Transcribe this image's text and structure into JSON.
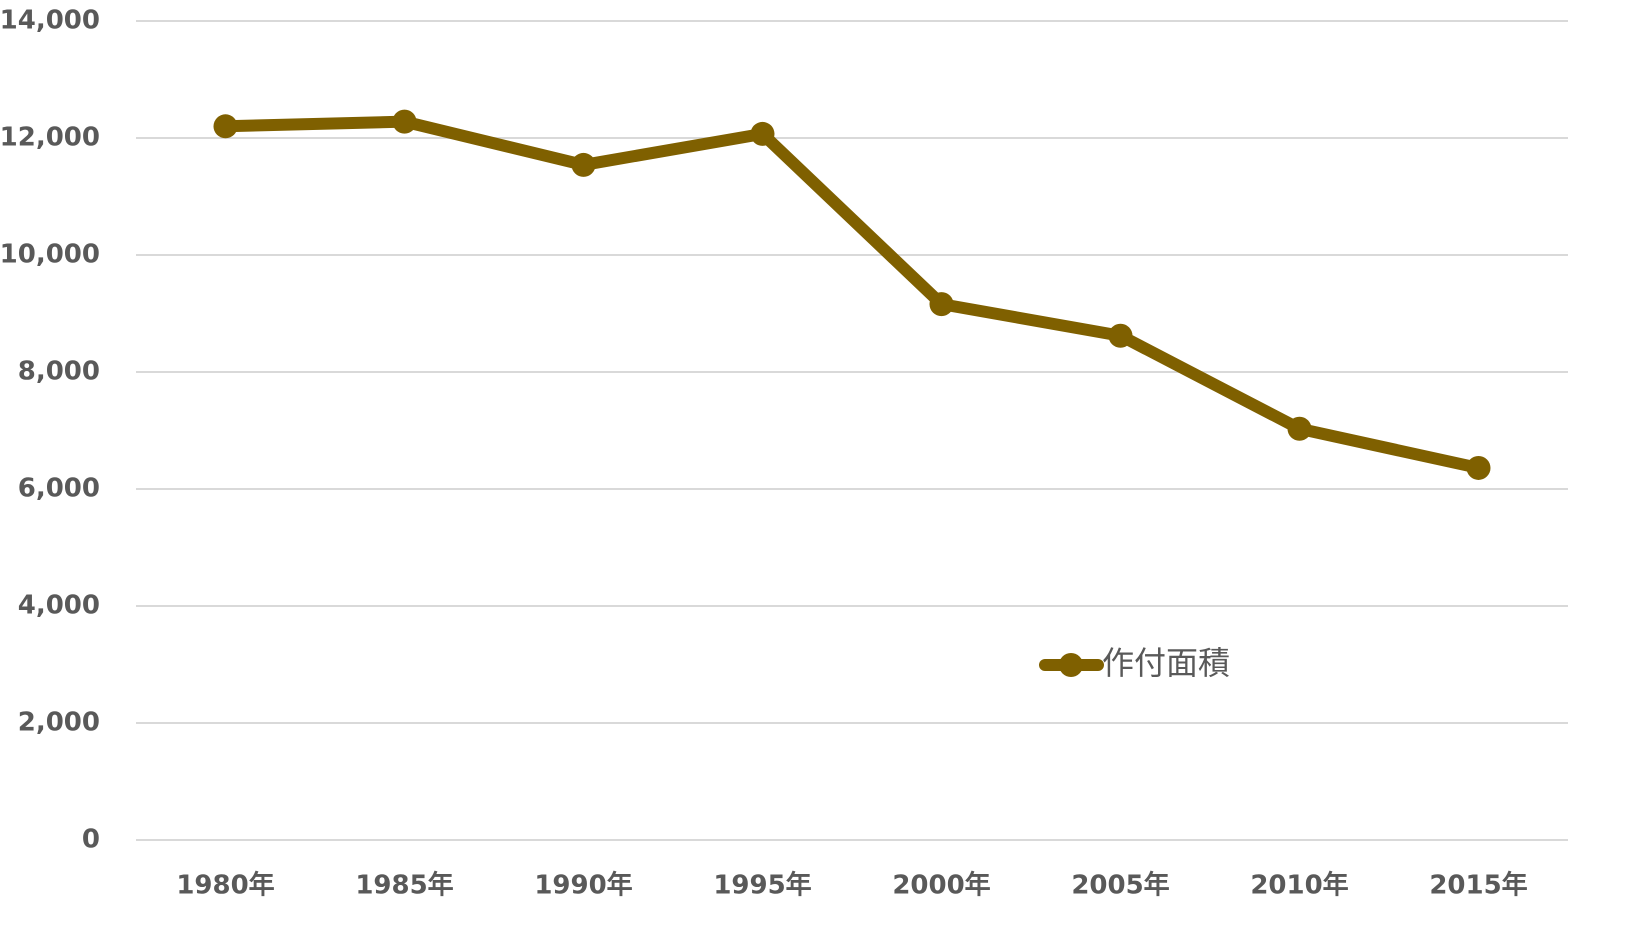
{
  "chart_data": {
    "type": "line",
    "categories": [
      "1980年",
      "1985年",
      "1990年",
      "1995年",
      "2000年",
      "2005年",
      "2010年",
      "2015年"
    ],
    "series": [
      {
        "name": "作付面積",
        "color": "#7f6000",
        "values": [
          12200,
          12280,
          11540,
          12070,
          9160,
          8620,
          7030,
          6360
        ]
      }
    ],
    "ylim": [
      0,
      14000
    ],
    "yticks": [
      0,
      {
        "value": 2000,
        "label": "2,000"
      },
      {
        "value": 4000,
        "label": "4,000"
      },
      {
        "value": 6000,
        "label": "6,000"
      },
      {
        "value": 8000,
        "label": "8,000"
      },
      {
        "value": 10000,
        "label": "10,000"
      },
      {
        "value": 12000,
        "label": "12,000"
      },
      {
        "value": 14000,
        "label": "14,000"
      }
    ],
    "grid": true
  }
}
